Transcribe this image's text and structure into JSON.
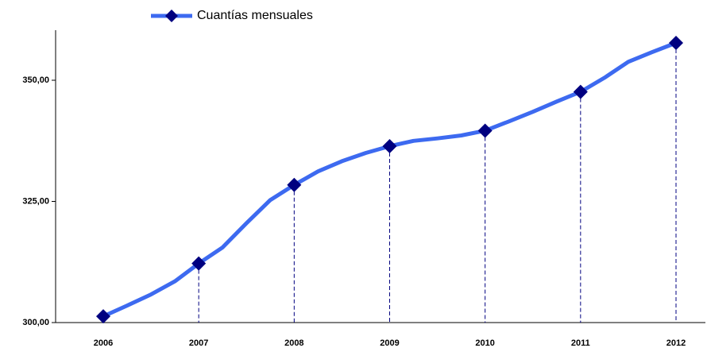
{
  "chart_data": {
    "type": "line",
    "x": [
      2006,
      2006.25,
      2006.5,
      2006.75,
      2007,
      2007.25,
      2007.5,
      2007.75,
      2008,
      2008.25,
      2008.5,
      2008.75,
      2009,
      2009.25,
      2009.5,
      2009.75,
      2010,
      2010.25,
      2010.5,
      2010.75,
      2011,
      2011.25,
      2011.5,
      2011.75,
      2012
    ],
    "series": [
      {
        "name": "Cuantías mensuales",
        "color": "#3d6af0",
        "marker_color": "#000080",
        "values": [
          301.3,
          303.5,
          305.8,
          308.5,
          312.2,
          315.5,
          320.5,
          325.3,
          328.4,
          331.2,
          333.3,
          335.0,
          336.4,
          337.5,
          338.0,
          338.6,
          339.6,
          341.5,
          343.5,
          345.6,
          347.6,
          350.5,
          353.8,
          355.8,
          357.7
        ]
      }
    ],
    "xlim": [
      2006,
      2012
    ],
    "xticks": [
      2006,
      2007,
      2008,
      2009,
      2010,
      2011,
      2012
    ],
    "ylim": [
      300,
      360
    ],
    "yticks": [
      {
        "value": 300,
        "label": "300,00"
      },
      {
        "value": 325,
        "label": "325,00"
      },
      {
        "value": 350,
        "label": "350,00"
      }
    ],
    "legend": "top"
  }
}
